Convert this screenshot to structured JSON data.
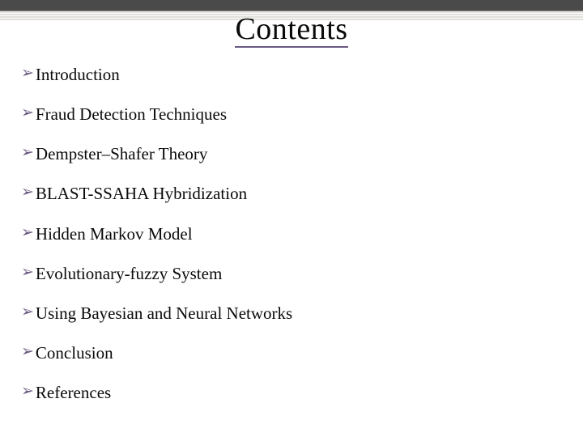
{
  "slide": {
    "title": "Contents",
    "title_underline_color": "#6b5a82",
    "bullet_glyph": "➢",
    "bullet_color": "#6b5a82",
    "text_color": "#0a0a0a",
    "background_color": "#ffffff",
    "top_bar_color": "#4a4a4a",
    "divider_color": "#c9c4c0",
    "title_fontsize": 38,
    "item_fontsize": 21,
    "items": [
      {
        "label": "Introduction"
      },
      {
        "label": "Fraud Detection Techniques"
      },
      {
        "label": "Dempster–Shafer Theory"
      },
      {
        "label": "BLAST-SSAHA Hybridization"
      },
      {
        "label": "Hidden Markov Model"
      },
      {
        "label": "Evolutionary-fuzzy System"
      },
      {
        "label": "Using Bayesian and Neural Networks"
      },
      {
        "label": "Conclusion"
      },
      {
        "label": "References"
      }
    ]
  }
}
